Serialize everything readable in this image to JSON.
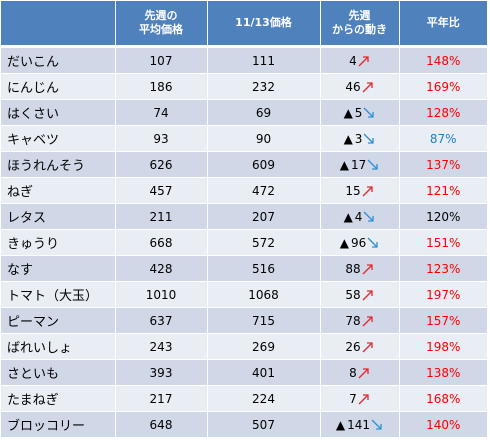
{
  "headers": {
    "vegetable": "",
    "last_week_avg": "先週の\n平均価格",
    "price_1113": "11/13価格",
    "change": "先週\nからの動き",
    "vs_normal": "平年比"
  },
  "colors": {
    "header_bg": "#4F81BD",
    "row_odd": "#D0D8E8",
    "row_even": "#E9EDF4",
    "up_arrow": "#E8262B",
    "down_arrow": "#2E8FD8",
    "pct_high": "#FF0000",
    "pct_low": "#1F7FC4",
    "pct_neutral": "#000000"
  },
  "icons": {
    "up": "arrow-up-right-icon",
    "down": "arrow-down-right-icon",
    "minus_marker": "triangle-marker-icon"
  },
  "rows": [
    {
      "name": "だいこん",
      "last_week": "107",
      "price": "111",
      "neg": false,
      "diff": "4",
      "dir": "up",
      "pct": "148%",
      "pct_color": "high"
    },
    {
      "name": "にんじん",
      "last_week": "186",
      "price": "232",
      "neg": false,
      "diff": "46",
      "dir": "up",
      "pct": "169%",
      "pct_color": "high"
    },
    {
      "name": "はくさい",
      "last_week": "74",
      "price": "69",
      "neg": true,
      "diff": "5",
      "dir": "down",
      "pct": "128%",
      "pct_color": "high"
    },
    {
      "name": "キャベツ",
      "last_week": "93",
      "price": "90",
      "neg": true,
      "diff": "3",
      "dir": "down",
      "pct": "87%",
      "pct_color": "low"
    },
    {
      "name": "ほうれんそう",
      "last_week": "626",
      "price": "609",
      "neg": true,
      "diff": "17",
      "dir": "down",
      "pct": "137%",
      "pct_color": "high"
    },
    {
      "name": "ねぎ",
      "last_week": "457",
      "price": "472",
      "neg": false,
      "diff": "15",
      "dir": "up",
      "pct": "121%",
      "pct_color": "high"
    },
    {
      "name": "レタス",
      "last_week": "211",
      "price": "207",
      "neg": true,
      "diff": "4",
      "dir": "down",
      "pct": "120%",
      "pct_color": "neutral"
    },
    {
      "name": "きゅうり",
      "last_week": "668",
      "price": "572",
      "neg": true,
      "diff": "96",
      "dir": "down",
      "pct": "151%",
      "pct_color": "high"
    },
    {
      "name": "なす",
      "last_week": "428",
      "price": "516",
      "neg": false,
      "diff": "88",
      "dir": "up",
      "pct": "123%",
      "pct_color": "high"
    },
    {
      "name": "トマト（大玉）",
      "last_week": "1010",
      "price": "1068",
      "neg": false,
      "diff": "58",
      "dir": "up",
      "pct": "197%",
      "pct_color": "high"
    },
    {
      "name": "ピーマン",
      "last_week": "637",
      "price": "715",
      "neg": false,
      "diff": "78",
      "dir": "up",
      "pct": "157%",
      "pct_color": "high"
    },
    {
      "name": "ばれいしょ",
      "last_week": "243",
      "price": "269",
      "neg": false,
      "diff": "26",
      "dir": "up",
      "pct": "198%",
      "pct_color": "high"
    },
    {
      "name": "さといも",
      "last_week": "393",
      "price": "401",
      "neg": false,
      "diff": "8",
      "dir": "up",
      "pct": "138%",
      "pct_color": "high"
    },
    {
      "name": "たまねぎ",
      "last_week": "217",
      "price": "224",
      "neg": false,
      "diff": "7",
      "dir": "up",
      "pct": "168%",
      "pct_color": "high"
    },
    {
      "name": "ブロッコリー",
      "last_week": "648",
      "price": "507",
      "neg": true,
      "diff": "141",
      "dir": "down",
      "pct": "140%",
      "pct_color": "high"
    }
  ]
}
